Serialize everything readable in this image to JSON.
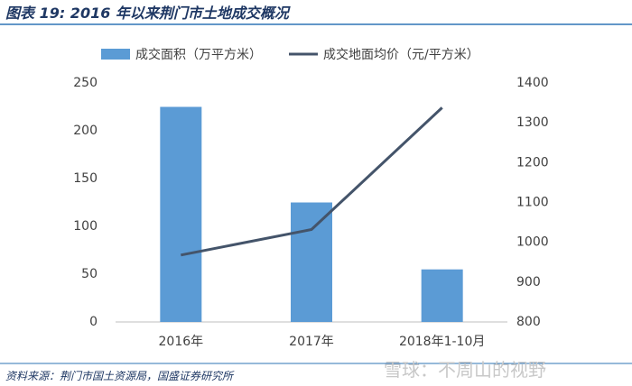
{
  "chart_data": {
    "type": "bar",
    "title": "图表 19:  2016 年以来荆门市土地成交概况",
    "source": "资料来源：荆门市国土资源局，国盛证券研究所",
    "watermark": "雪球：不周山的视野",
    "categories": [
      "2016年",
      "2017年",
      "2018年1-10月"
    ],
    "series": [
      {
        "name": "成交面积（万平方米）",
        "type": "bar",
        "color": "#5b9bd5",
        "values": [
          225,
          125,
          55
        ]
      },
      {
        "name": "成交地面均价（元/平方米）",
        "type": "line",
        "axis": "y2",
        "color": "#44546a",
        "values": [
          968,
          1032,
          1338
        ]
      }
    ],
    "ylim": [
      0,
      250
    ],
    "yticks": [
      0,
      50,
      100,
      150,
      200,
      250
    ],
    "y2lim": [
      800,
      1400
    ],
    "y2ticks": [
      800,
      900,
      1000,
      1100,
      1200,
      1300,
      1400
    ],
    "legend": "top",
    "grid": false
  }
}
